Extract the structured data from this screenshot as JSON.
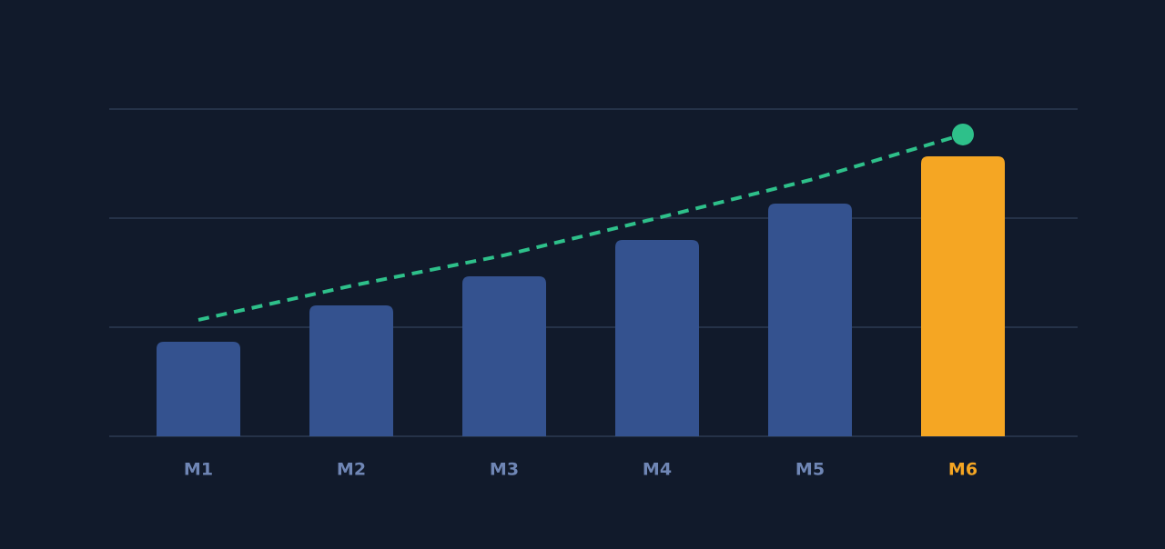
{
  "chart_data": {
    "type": "bar",
    "categories": [
      "M1",
      "M2",
      "M3",
      "M4",
      "M5",
      "M6"
    ],
    "series": [
      {
        "type": "bar",
        "color": "#34528f",
        "highlight_color": "#f5a623",
        "highlight": [
          false,
          false,
          false,
          false,
          false,
          true
        ],
        "values": [
          86.7,
          120,
          146.7,
          180,
          213.3,
          256.7
        ]
      },
      {
        "type": "line",
        "color": "#2ec08a",
        "dashed": true,
        "end_marker": true,
        "values": [
          106.7,
          138,
          166,
          200,
          235,
          276.7
        ]
      }
    ],
    "ylim": [
      0,
      300
    ],
    "yticks": [
      0,
      100,
      200,
      300
    ],
    "grid": true
  }
}
